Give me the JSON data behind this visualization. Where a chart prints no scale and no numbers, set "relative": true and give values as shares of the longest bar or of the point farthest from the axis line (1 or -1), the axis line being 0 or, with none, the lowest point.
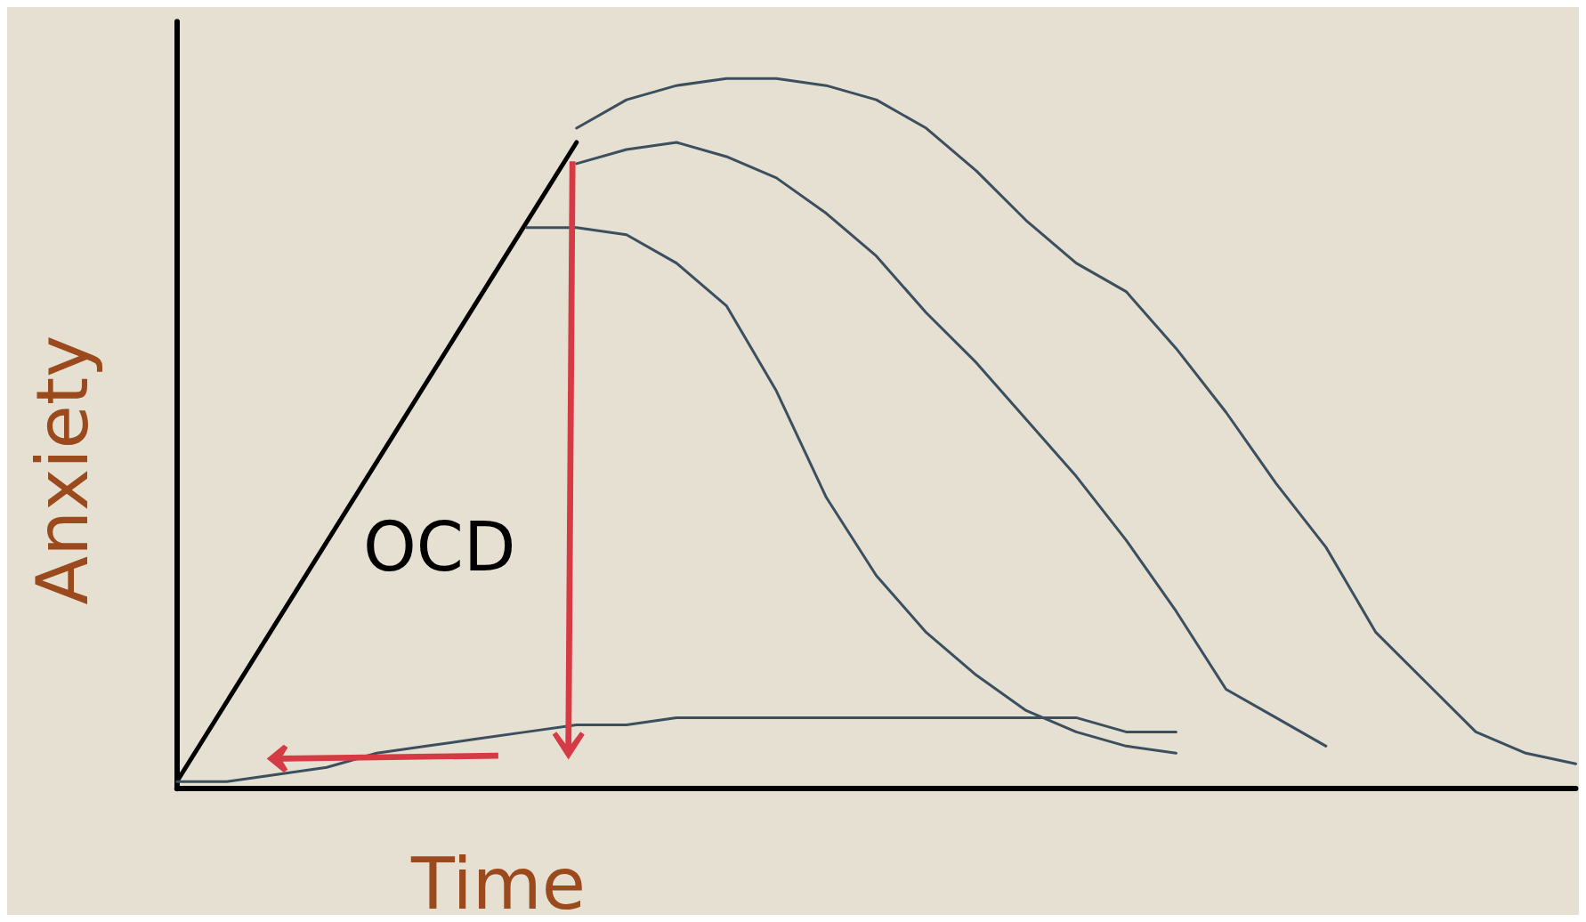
{
  "chart_data": {
    "type": "line",
    "relative": true,
    "xlabel": "Time",
    "ylabel": "Anxiety",
    "annotations": [
      "OCD"
    ],
    "grid": false,
    "marker": "none",
    "line_style": "solid",
    "categories": [
      null,
      null,
      null,
      null,
      null,
      null,
      null,
      null,
      null,
      null,
      null,
      null,
      null,
      null,
      null,
      null,
      null,
      null,
      null,
      null,
      null,
      null,
      null,
      null,
      null,
      null,
      null,
      null,
      null
    ],
    "series": [
      {
        "color": "#000000",
        "values": [
          0.01,
          null,
          null,
          null,
          null,
          null,
          null,
          null,
          0.91,
          null,
          null,
          null,
          null,
          null,
          null,
          null,
          null,
          null,
          null,
          null,
          null,
          null,
          null,
          null,
          null,
          null,
          null,
          null,
          null
        ]
      },
      {
        "color": "#3b4f5e",
        "values": [
          null,
          null,
          null,
          null,
          null,
          null,
          null,
          null,
          0.93,
          0.97,
          0.99,
          1.0,
          1.0,
          0.99,
          0.97,
          0.93,
          0.87,
          0.8,
          0.74,
          0.7,
          0.62,
          0.53,
          0.43,
          0.34,
          0.22,
          0.15,
          0.08,
          0.05,
          0.035
        ]
      },
      {
        "color": "#3b4f5e",
        "values": [
          null,
          null,
          null,
          null,
          null,
          null,
          null,
          null,
          0.88,
          0.9,
          0.91,
          0.89,
          0.86,
          0.81,
          0.75,
          0.67,
          0.6,
          0.52,
          0.44,
          0.35,
          0.25,
          0.14,
          0.1,
          0.06,
          null,
          null,
          null,
          null,
          null
        ]
      },
      {
        "color": "#3b4f5e",
        "values": [
          null,
          null,
          null,
          null,
          null,
          null,
          null,
          0.79,
          0.79,
          0.78,
          0.74,
          0.68,
          0.56,
          0.41,
          0.3,
          0.22,
          0.16,
          0.11,
          0.08,
          0.06,
          0.05,
          null,
          null,
          null,
          null,
          null,
          null,
          null,
          null
        ]
      },
      {
        "color": "#3b4f5e",
        "values": [
          0.01,
          0.01,
          0.02,
          0.03,
          0.05,
          0.06,
          0.07,
          0.08,
          0.09,
          0.09,
          0.1,
          0.1,
          0.1,
          0.1,
          0.1,
          0.1,
          0.1,
          0.1,
          0.1,
          0.08,
          0.08,
          null,
          null,
          null,
          null,
          null,
          null,
          null,
          null
        ]
      }
    ]
  }
}
